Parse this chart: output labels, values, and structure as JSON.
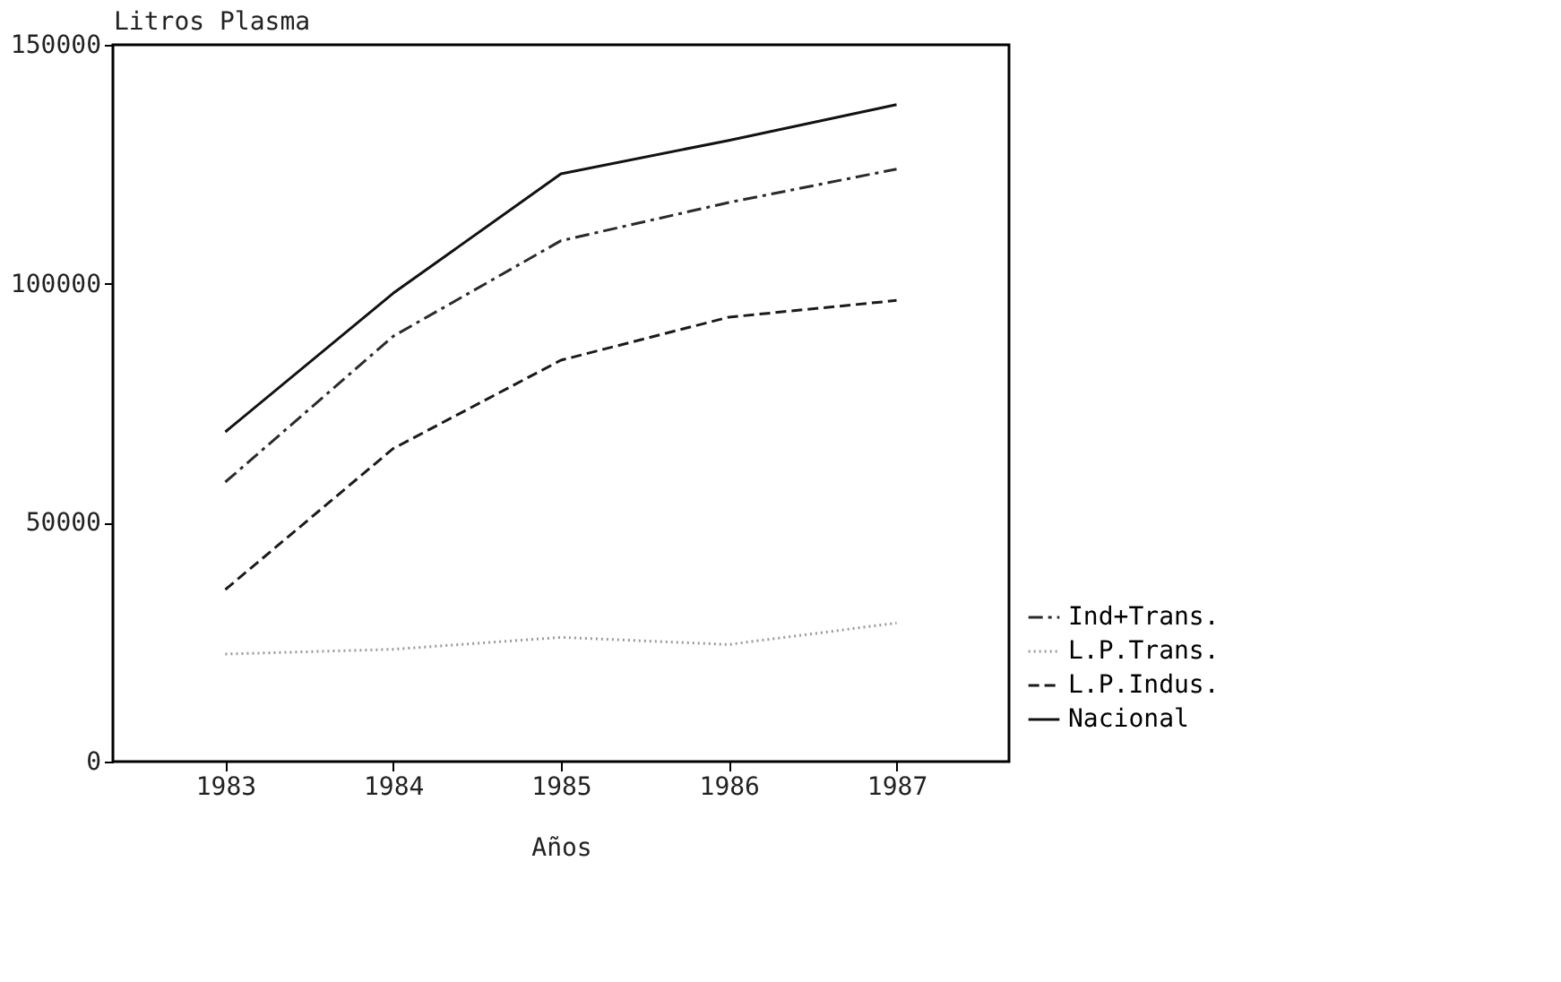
{
  "chart_data": {
    "type": "line",
    "ylabel": "Litros Plasma",
    "xlabel": "Años",
    "x": [
      1983,
      1984,
      1985,
      1986,
      1987
    ],
    "series": [
      {
        "name": "Ind+Trans.",
        "color": "#2a2a2a",
        "line_style": "dashdot",
        "values": [
          58500,
          89000,
          109000,
          117000,
          124000
        ]
      },
      {
        "name": "L.P.Trans.",
        "color": "#9a9a9a",
        "line_style": "dotted",
        "values": [
          22500,
          23500,
          26000,
          24500,
          29000
        ]
      },
      {
        "name": "L.P.Indus.",
        "color": "#1a1a1a",
        "line_style": "dashed",
        "values": [
          36000,
          65500,
          84000,
          93000,
          96500
        ]
      },
      {
        "name": "Nacional",
        "color": "#111111",
        "line_style": "solid",
        "values": [
          69000,
          98000,
          123000,
          130000,
          137500
        ]
      }
    ],
    "xlim": [
      1982.33,
      1987.67
    ],
    "xticks": [
      1983,
      1984,
      1985,
      1986,
      1987
    ],
    "ylim": [
      0,
      150000
    ],
    "yticks": [
      0,
      50000,
      100000,
      150000
    ],
    "grid": false,
    "legend": "bottom right",
    "marker": "none"
  }
}
